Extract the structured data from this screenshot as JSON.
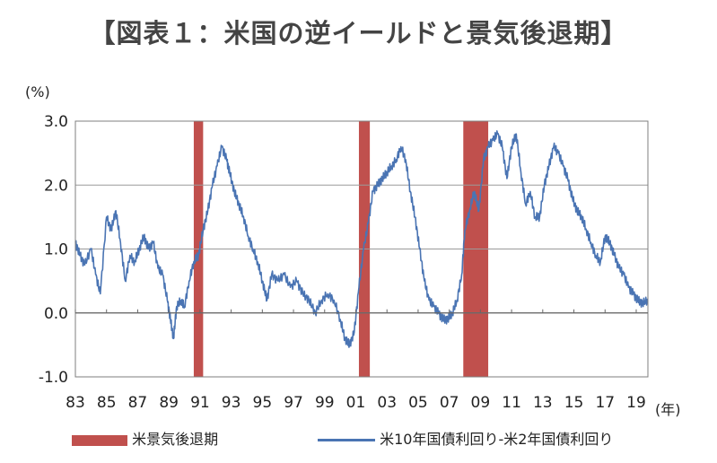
{
  "title": "【図表１：米国の逆イールドと景気後退期】",
  "chart_data": {
    "type": "line",
    "title": "【図表１：米国の逆イールドと景気後退期】",
    "ylabel": "(%)",
    "xlabel": "(年)",
    "ylim": [
      -1.0,
      3.0
    ],
    "xlim": [
      1983.0,
      2019.75
    ],
    "yticks": [
      "-1.0",
      "0.0",
      "1.0",
      "2.0",
      "3.0"
    ],
    "ytick_values": [
      -1.0,
      0.0,
      1.0,
      2.0,
      3.0
    ],
    "xticks": [
      "83",
      "85",
      "87",
      "89",
      "91",
      "93",
      "95",
      "97",
      "99",
      "01",
      "03",
      "05",
      "07",
      "09",
      "11",
      "13",
      "15",
      "17",
      "19"
    ],
    "xtick_values": [
      1983,
      1985,
      1987,
      1989,
      1991,
      1993,
      1995,
      1997,
      1999,
      2001,
      2003,
      2005,
      2007,
      2009,
      2011,
      2013,
      2015,
      2017,
      2019
    ],
    "recessions": [
      {
        "start": 1990.6,
        "end": 1991.2
      },
      {
        "start": 2001.2,
        "end": 2001.9
      },
      {
        "start": 2007.9,
        "end": 2009.5
      }
    ],
    "series": [
      {
        "name": "米10年国債利回り-米2年国債利回り",
        "color": "#4a74b3",
        "x": [
          1983.0,
          1983.3,
          1983.6,
          1984.0,
          1984.3,
          1984.6,
          1985.0,
          1985.3,
          1985.6,
          1985.9,
          1986.2,
          1986.5,
          1986.8,
          1987.1,
          1987.4,
          1987.7,
          1988.0,
          1988.3,
          1988.6,
          1988.9,
          1989.1,
          1989.3,
          1989.5,
          1989.8,
          1990.0,
          1990.3,
          1990.6,
          1990.9,
          1991.2,
          1991.5,
          1991.8,
          1992.1,
          1992.4,
          1992.7,
          1992.9,
          1993.2,
          1993.5,
          1993.8,
          1994.1,
          1994.4,
          1994.7,
          1995.0,
          1995.3,
          1995.6,
          1996.0,
          1996.4,
          1996.8,
          1997.2,
          1997.6,
          1998.0,
          1998.4,
          1998.8,
          1999.2,
          1999.6,
          2000.0,
          2000.3,
          2000.6,
          2000.9,
          2001.2,
          2001.5,
          2001.8,
          2002.1,
          2002.4,
          2002.7,
          2003.0,
          2003.3,
          2003.6,
          2003.9,
          2004.2,
          2004.5,
          2004.8,
          2005.1,
          2005.4,
          2005.7,
          2006.0,
          2006.3,
          2006.6,
          2006.9,
          2007.2,
          2007.5,
          2007.8,
          2008.0,
          2008.3,
          2008.6,
          2008.9,
          2009.2,
          2009.5,
          2009.8,
          2010.1,
          2010.4,
          2010.7,
          2011.0,
          2011.3,
          2011.6,
          2011.9,
          2012.2,
          2012.5,
          2012.8,
          2013.1,
          2013.4,
          2013.7,
          2014.0,
          2014.3,
          2014.6,
          2014.9,
          2015.2,
          2015.5,
          2015.8,
          2016.1,
          2016.4,
          2016.7,
          2017.0,
          2017.3,
          2017.6,
          2017.9,
          2018.2,
          2018.5,
          2018.8,
          2019.1,
          2019.4,
          2019.75
        ],
        "values": [
          1.1,
          0.9,
          0.75,
          1.0,
          0.6,
          0.3,
          1.5,
          1.3,
          1.6,
          1.1,
          0.5,
          0.9,
          0.8,
          1.0,
          1.2,
          1.0,
          1.1,
          0.7,
          0.6,
          0.2,
          -0.1,
          -0.4,
          0.1,
          0.2,
          0.1,
          0.5,
          0.8,
          0.9,
          1.3,
          1.6,
          2.0,
          2.3,
          2.6,
          2.4,
          2.2,
          1.9,
          1.7,
          1.5,
          1.2,
          1.0,
          0.8,
          0.5,
          0.2,
          0.6,
          0.5,
          0.6,
          0.4,
          0.5,
          0.3,
          0.2,
          0.0,
          0.2,
          0.3,
          0.2,
          -0.1,
          -0.4,
          -0.5,
          -0.3,
          0.4,
          1.0,
          1.4,
          1.9,
          2.0,
          2.1,
          2.2,
          2.3,
          2.4,
          2.6,
          2.4,
          1.9,
          1.5,
          1.0,
          0.5,
          0.2,
          0.1,
          0.0,
          -0.1,
          -0.1,
          0.0,
          0.2,
          0.6,
          1.3,
          1.6,
          1.9,
          1.6,
          2.4,
          2.6,
          2.7,
          2.8,
          2.6,
          2.1,
          2.6,
          2.8,
          2.2,
          1.7,
          1.9,
          1.5,
          1.5,
          2.0,
          2.3,
          2.6,
          2.5,
          2.3,
          2.1,
          1.8,
          1.6,
          1.5,
          1.3,
          1.1,
          0.9,
          0.8,
          1.2,
          1.1,
          0.9,
          0.7,
          0.6,
          0.4,
          0.3,
          0.2,
          0.15,
          0.2
        ]
      }
    ],
    "legend": [
      {
        "label": "米景気後退期",
        "type": "bar",
        "color": "#c0504d"
      },
      {
        "label": "米10年国債利回り-米2年国債利回り",
        "type": "line",
        "color": "#4a74b3"
      }
    ]
  }
}
